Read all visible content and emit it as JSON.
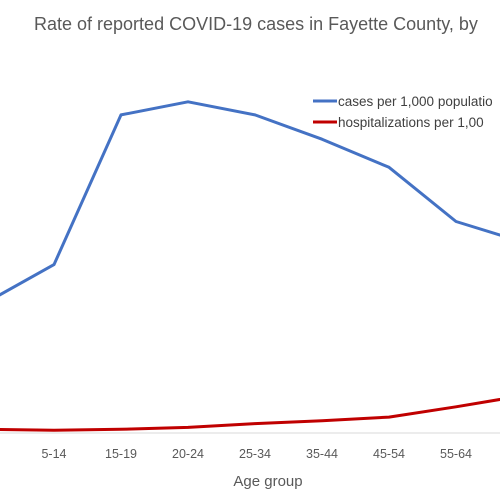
{
  "chart_data": {
    "type": "line",
    "title": "Rate of reported COVID-19 cases in Fayette County, by",
    "xlabel": "Age group",
    "ylabel": "",
    "categories": [
      "",
      "5-14",
      "15-19",
      "20-24",
      "25-34",
      "35-44",
      "45-54",
      "55-64",
      ""
    ],
    "series": [
      {
        "name": "cases per 1,000 populatio",
        "color": "#4472c4",
        "values": [
          70,
          90,
          170,
          177,
          170,
          157,
          142,
          113,
          102
        ]
      },
      {
        "name": "hospitalizations per 1,00",
        "color": "#c00000",
        "values": [
          2,
          1.5,
          2,
          3,
          5,
          6.5,
          8.5,
          14,
          20
        ]
      }
    ],
    "ylim": [
      0,
      210
    ],
    "grid": false,
    "legend_position": "top-right"
  }
}
